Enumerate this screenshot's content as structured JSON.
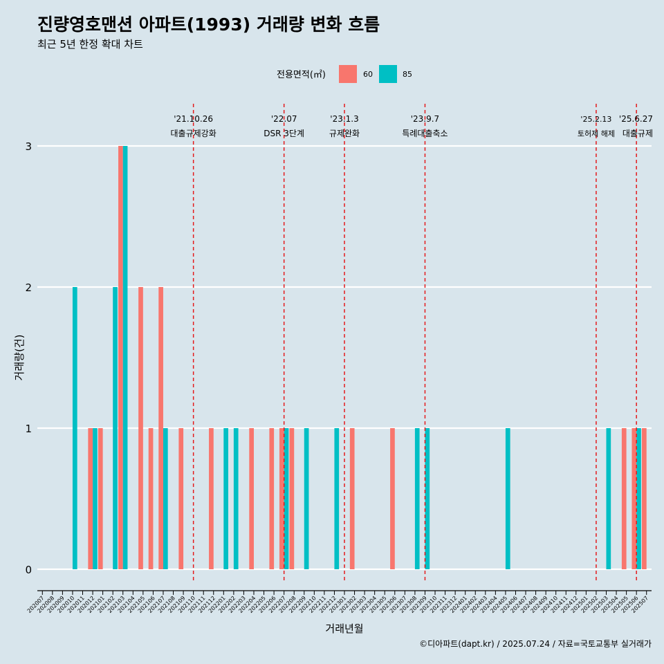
{
  "title": "진량영호맨션 아파트(1993) 거래량 변화 흐름",
  "subtitle": "최근 5년 한정 확대 차트",
  "caption": "©디아파트(dapt.kr) / 2025.07.24 / 자료=국토교통부 실거래가",
  "colors": {
    "background": "#d8e5ec",
    "s60": "#f8766d",
    "s85": "#00bfc4",
    "event_line": "#e41a1c",
    "grid": "#ffffff"
  },
  "chart_data": {
    "type": "bar",
    "xlabel": "거래년월",
    "ylabel": "거래량(건)",
    "ylim": [
      0,
      3
    ],
    "yticks": [
      0,
      1,
      2,
      3
    ],
    "legend": {
      "title": "전용면적(㎡)",
      "position": "top"
    },
    "categories": [
      "202007",
      "202008",
      "202009",
      "202010",
      "202011",
      "202012",
      "202101",
      "202102",
      "202103",
      "202104",
      "202105",
      "202106",
      "202107",
      "202108",
      "202109",
      "202110",
      "202111",
      "202112",
      "202201",
      "202202",
      "202203",
      "202204",
      "202205",
      "202206",
      "202207",
      "202208",
      "202209",
      "202210",
      "202211",
      "202212",
      "202301",
      "202302",
      "202303",
      "202304",
      "202305",
      "202306",
      "202307",
      "202308",
      "202309",
      "202310",
      "202311",
      "202312",
      "202401",
      "202402",
      "202403",
      "202404",
      "202405",
      "202406",
      "202407",
      "202408",
      "202409",
      "202410",
      "202411",
      "202412",
      "202501",
      "202502",
      "202503",
      "202504",
      "202505",
      "202506",
      "202507"
    ],
    "series": [
      {
        "name": "60",
        "values": [
          0,
          0,
          0,
          0,
          0,
          1,
          1,
          0,
          3,
          0,
          2,
          1,
          2,
          0,
          1,
          0,
          0,
          1,
          0,
          0,
          0,
          1,
          0,
          1,
          1,
          1,
          0,
          0,
          0,
          0,
          0,
          1,
          0,
          0,
          0,
          1,
          0,
          0,
          0,
          0,
          0,
          0,
          0,
          0,
          0,
          0,
          0,
          0,
          0,
          0,
          0,
          0,
          0,
          0,
          0,
          0,
          0,
          0,
          1,
          1,
          1
        ]
      },
      {
        "name": "85",
        "values": [
          0,
          0,
          0,
          2,
          0,
          1,
          0,
          2,
          3,
          0,
          0,
          0,
          1,
          0,
          0,
          0,
          0,
          0,
          1,
          1,
          0,
          0,
          0,
          0,
          1,
          0,
          1,
          0,
          0,
          1,
          0,
          0,
          0,
          0,
          0,
          0,
          0,
          1,
          1,
          0,
          0,
          0,
          0,
          0,
          0,
          0,
          1,
          0,
          0,
          0,
          0,
          0,
          0,
          0,
          0,
          0,
          1,
          0,
          0,
          1,
          0
        ]
      }
    ],
    "events": [
      {
        "date_label": "'21.10.26",
        "label": "대출규제강화",
        "at": "202110"
      },
      {
        "date_label": "'22.07",
        "label": "DSR 3단계",
        "at": "202207"
      },
      {
        "date_label": "'23.1.3",
        "label": "규제완화",
        "at": "202301"
      },
      {
        "date_label": "'23.9.7",
        "label": "특례대출축소",
        "at": "202309"
      },
      {
        "date_label": "'25.2.13",
        "label": "토허제 해제",
        "at": "202502"
      },
      {
        "date_label": "'25.6.27",
        "label": "대출규제",
        "at": "202506"
      }
    ]
  }
}
